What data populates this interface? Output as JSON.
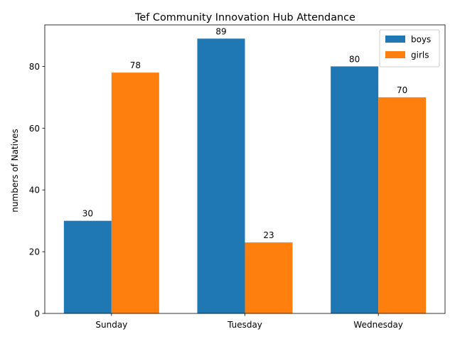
{
  "chart_data": {
    "type": "bar",
    "title": "Tef Community Innovation Hub Attendance",
    "xlabel": "",
    "ylabel": "numbers of Natives",
    "categories": [
      "Sunday",
      "Tuesday",
      "Wednesday"
    ],
    "series": [
      {
        "name": "boys",
        "values": [
          30,
          89,
          80
        ],
        "color": "#1f77b4"
      },
      {
        "name": "girls",
        "values": [
          78,
          23,
          70
        ],
        "color": "#ff7f0e"
      }
    ],
    "ylim": [
      0,
      93.45
    ],
    "yticks": [
      0,
      20,
      40,
      60,
      80
    ],
    "grid": false,
    "legend_position": "top-right",
    "data_labels": true
  }
}
